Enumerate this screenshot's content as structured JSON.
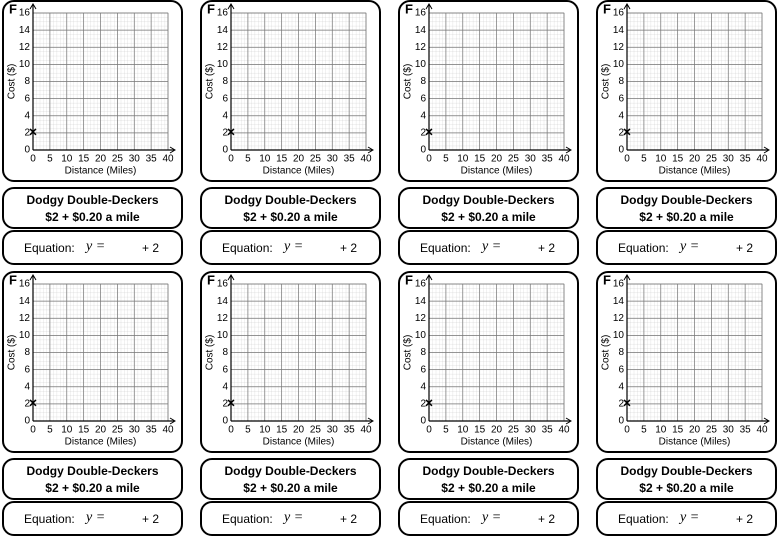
{
  "cards": [
    {
      "letter": "F",
      "graph": {
        "xlim": [
          0,
          40
        ],
        "ylim": [
          0,
          16
        ],
        "xticks": [
          0,
          5,
          10,
          15,
          20,
          25,
          30,
          35,
          40
        ],
        "yticks": [
          0,
          2,
          4,
          6,
          8,
          10,
          12,
          14,
          16
        ],
        "x_label": "Distance (Miles)",
        "y_label": "Cost ($)",
        "point": {
          "x": 0,
          "y": 2,
          "marker": "×"
        }
      },
      "name": "Dodgy Double-Deckers",
      "price": "$2 + $0.20 a mile",
      "equation": {
        "label": "Equation:",
        "lhs": "y =",
        "rhs": "+ 2"
      }
    },
    {
      "letter": "F",
      "graph": {
        "xlim": [
          0,
          40
        ],
        "ylim": [
          0,
          16
        ],
        "xticks": [
          0,
          5,
          10,
          15,
          20,
          25,
          30,
          35,
          40
        ],
        "yticks": [
          0,
          2,
          4,
          6,
          8,
          10,
          12,
          14,
          16
        ],
        "x_label": "Distance (Miles)",
        "y_label": "Cost ($)",
        "point": {
          "x": 0,
          "y": 2,
          "marker": "×"
        }
      },
      "name": "Dodgy Double-Deckers",
      "price": "$2 + $0.20 a mile",
      "equation": {
        "label": "Equation:",
        "lhs": "y =",
        "rhs": "+ 2"
      }
    },
    {
      "letter": "F",
      "graph": {
        "xlim": [
          0,
          40
        ],
        "ylim": [
          0,
          16
        ],
        "xticks": [
          0,
          5,
          10,
          15,
          20,
          25,
          30,
          35,
          40
        ],
        "yticks": [
          0,
          2,
          4,
          6,
          8,
          10,
          12,
          14,
          16
        ],
        "x_label": "Distance (Miles)",
        "y_label": "Cost ($)",
        "point": {
          "x": 0,
          "y": 2,
          "marker": "×"
        }
      },
      "name": "Dodgy Double-Deckers",
      "price": "$2 + $0.20 a mile",
      "equation": {
        "label": "Equation:",
        "lhs": "y =",
        "rhs": "+ 2"
      }
    },
    {
      "letter": "F",
      "graph": {
        "xlim": [
          0,
          40
        ],
        "ylim": [
          0,
          16
        ],
        "xticks": [
          0,
          5,
          10,
          15,
          20,
          25,
          30,
          35,
          40
        ],
        "yticks": [
          0,
          2,
          4,
          6,
          8,
          10,
          12,
          14,
          16
        ],
        "x_label": "Distance (Miles)",
        "y_label": "Cost ($)",
        "point": {
          "x": 0,
          "y": 2,
          "marker": "×"
        }
      },
      "name": "Dodgy Double-Deckers",
      "price": "$2 + $0.20 a mile",
      "equation": {
        "label": "Equation:",
        "lhs": "y =",
        "rhs": "+ 2"
      }
    },
    {
      "letter": "F",
      "graph": {
        "xlim": [
          0,
          40
        ],
        "ylim": [
          0,
          16
        ],
        "xticks": [
          0,
          5,
          10,
          15,
          20,
          25,
          30,
          35,
          40
        ],
        "yticks": [
          0,
          2,
          4,
          6,
          8,
          10,
          12,
          14,
          16
        ],
        "x_label": "Distance (Miles)",
        "y_label": "Cost ($)",
        "point": {
          "x": 0,
          "y": 2,
          "marker": "×"
        }
      },
      "name": "Dodgy Double-Deckers",
      "price": "$2 + $0.20 a mile",
      "equation": {
        "label": "Equation:",
        "lhs": "y =",
        "rhs": "+ 2"
      }
    },
    {
      "letter": "F",
      "graph": {
        "xlim": [
          0,
          40
        ],
        "ylim": [
          0,
          16
        ],
        "xticks": [
          0,
          5,
          10,
          15,
          20,
          25,
          30,
          35,
          40
        ],
        "yticks": [
          0,
          2,
          4,
          6,
          8,
          10,
          12,
          14,
          16
        ],
        "x_label": "Distance (Miles)",
        "y_label": "Cost ($)",
        "point": {
          "x": 0,
          "y": 2,
          "marker": "×"
        }
      },
      "name": "Dodgy Double-Deckers",
      "price": "$2 + $0.20 a mile",
      "equation": {
        "label": "Equation:",
        "lhs": "y =",
        "rhs": "+ 2"
      }
    },
    {
      "letter": "F",
      "graph": {
        "xlim": [
          0,
          40
        ],
        "ylim": [
          0,
          16
        ],
        "xticks": [
          0,
          5,
          10,
          15,
          20,
          25,
          30,
          35,
          40
        ],
        "yticks": [
          0,
          2,
          4,
          6,
          8,
          10,
          12,
          14,
          16
        ],
        "x_label": "Distance (Miles)",
        "y_label": "Cost ($)",
        "point": {
          "x": 0,
          "y": 2,
          "marker": "×"
        }
      },
      "name": "Dodgy Double-Deckers",
      "price": "$2 + $0.20 a mile",
      "equation": {
        "label": "Equation:",
        "lhs": "y =",
        "rhs": "+ 2"
      }
    },
    {
      "letter": "F",
      "graph": {
        "xlim": [
          0,
          40
        ],
        "ylim": [
          0,
          16
        ],
        "xticks": [
          0,
          5,
          10,
          15,
          20,
          25,
          30,
          35,
          40
        ],
        "yticks": [
          0,
          2,
          4,
          6,
          8,
          10,
          12,
          14,
          16
        ],
        "x_label": "Distance (Miles)",
        "y_label": "Cost ($)",
        "point": {
          "x": 0,
          "y": 2,
          "marker": "×"
        }
      },
      "name": "Dodgy Double-Deckers",
      "price": "$2 + $0.20 a mile",
      "equation": {
        "label": "Equation:",
        "lhs": "y =",
        "rhs": "+ 2"
      }
    }
  ]
}
